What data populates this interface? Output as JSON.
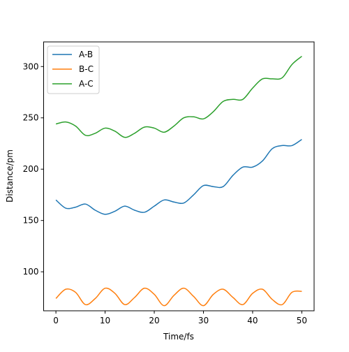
{
  "chart_data": {
    "type": "line",
    "title": "",
    "xlabel": "Time/fs",
    "ylabel": "Distance/pm",
    "xlim": [
      -2.5,
      52.5
    ],
    "ylim": [
      62,
      324
    ],
    "xticks": [
      0,
      10,
      20,
      30,
      40,
      50
    ],
    "yticks": [
      100,
      150,
      200,
      250,
      300
    ],
    "grid": false,
    "legend_position": "top-left",
    "x": [
      0,
      2,
      4,
      6,
      8,
      10,
      12,
      14,
      16,
      18,
      20,
      22,
      24,
      26,
      28,
      30,
      32,
      34,
      36,
      38,
      40,
      42,
      44,
      46,
      48,
      50
    ],
    "series": [
      {
        "name": "A-B",
        "color": "#1f77b4",
        "values": [
          170,
          162,
          163,
          166,
          160,
          156,
          159,
          164,
          160,
          158,
          164,
          170,
          168,
          167,
          175,
          184,
          183,
          183,
          194,
          202,
          202,
          208,
          220,
          223,
          223,
          229
        ]
      },
      {
        "name": "B-C",
        "color": "#ff7f0e",
        "values": [
          74,
          83,
          80,
          68,
          74,
          84,
          79,
          68,
          75,
          84,
          78,
          67,
          77,
          84,
          76,
          67,
          78,
          83,
          75,
          68,
          79,
          83,
          73,
          68,
          80,
          81
        ]
      },
      {
        "name": "A-C",
        "color": "#2ca02c",
        "values": [
          244,
          246,
          242,
          233,
          235,
          240,
          237,
          231,
          235,
          241,
          240,
          236,
          242,
          250,
          251,
          249,
          256,
          266,
          268,
          268,
          279,
          288,
          288,
          289,
          302,
          310
        ]
      }
    ]
  }
}
